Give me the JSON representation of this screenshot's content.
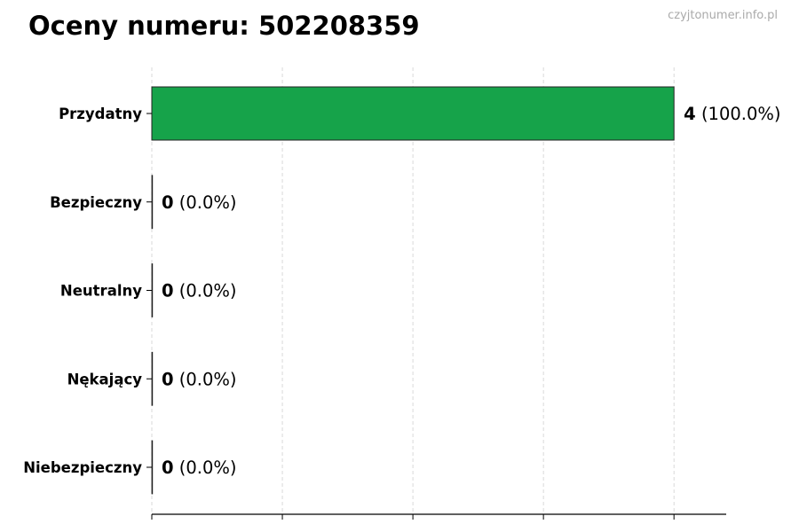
{
  "title": "Oceny numeru: 502208359",
  "watermark": "czyjtonumer.info.pl",
  "chart_data": {
    "type": "bar",
    "orientation": "horizontal",
    "title": "Oceny numeru: 502208359",
    "categories": [
      "Przydatny",
      "Bezpieczny",
      "Neutralny",
      "Nękający",
      "Niebezpieczny"
    ],
    "values": [
      4,
      0,
      0,
      0,
      0
    ],
    "value_labels": [
      {
        "count": "4",
        "percent": "(100.0%)"
      },
      {
        "count": "0",
        "percent": "(0.0%)"
      },
      {
        "count": "0",
        "percent": "(0.0%)"
      },
      {
        "count": "0",
        "percent": "(0.0%)"
      },
      {
        "count": "0",
        "percent": "(0.0%)"
      }
    ],
    "xlim": [
      0,
      4.4
    ],
    "xticks": [
      0,
      1,
      2,
      3,
      4
    ],
    "xtick_labels_shown": false,
    "grid": "vertical dashed",
    "bar_color": "#16a34a",
    "xlabel": "",
    "ylabel": ""
  }
}
